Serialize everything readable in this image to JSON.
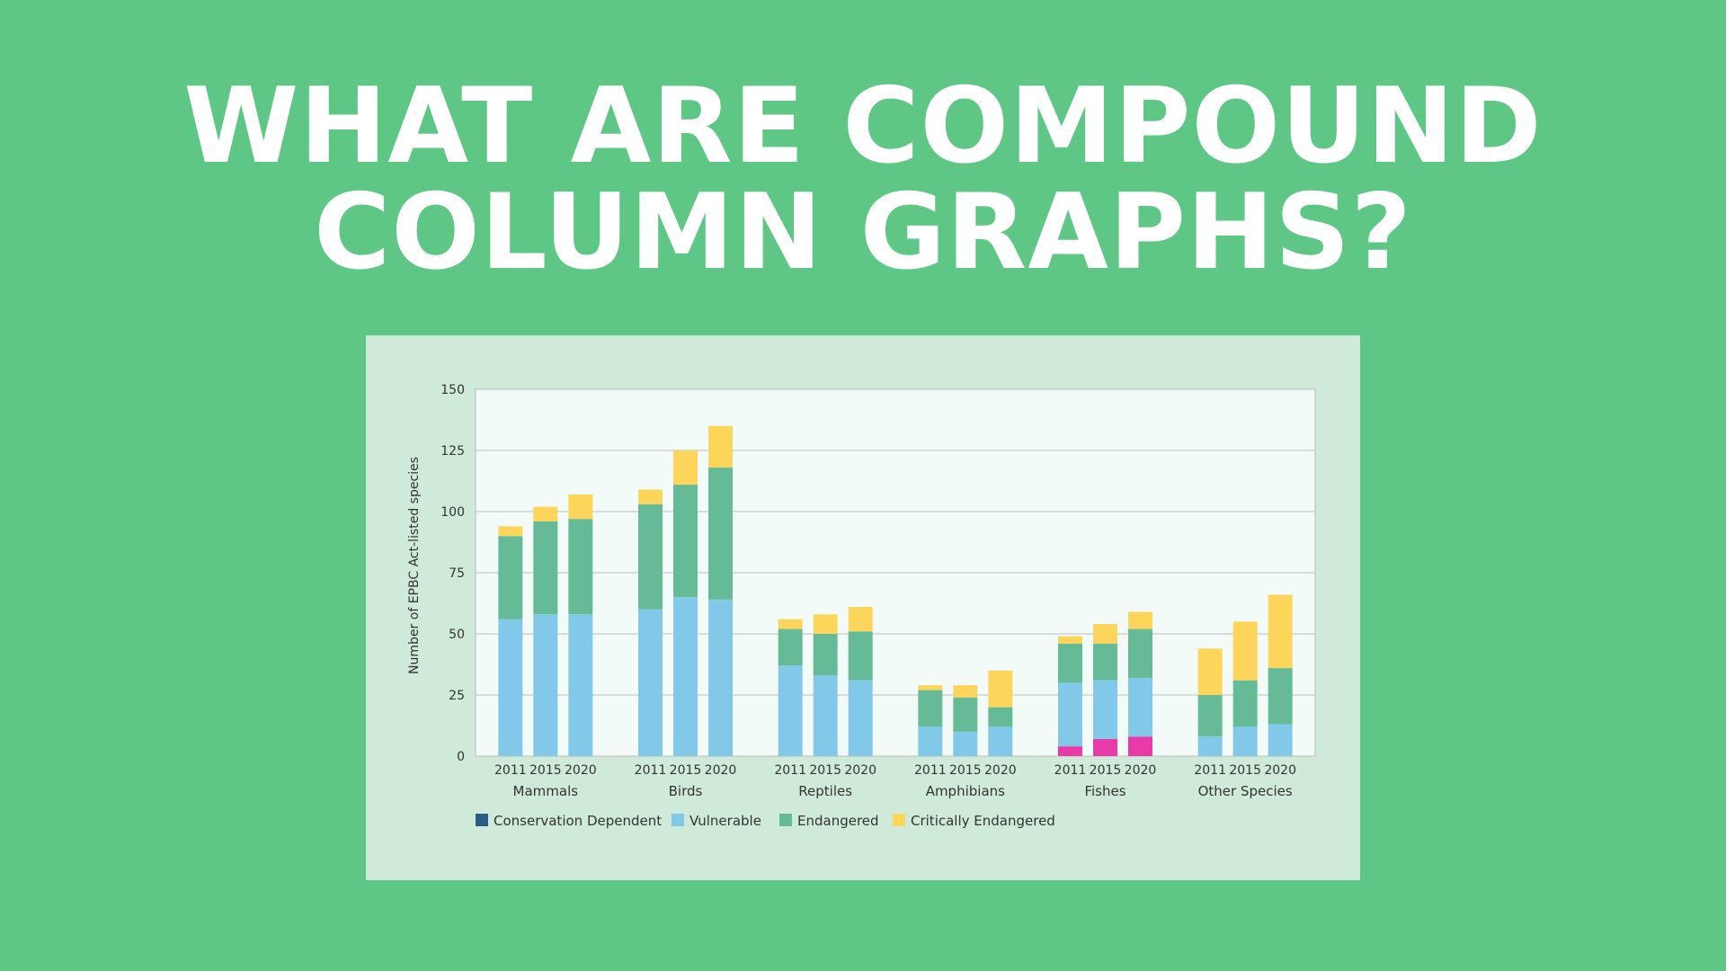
{
  "headline": {
    "line1": "WHAT ARE COMPOUND",
    "line2": "COLUMN GRAPHS?"
  },
  "colors": {
    "background": "#5ec785",
    "panel": "#d0ead9",
    "plot_bg": "#f3fbf9",
    "conservation_dependent": "#e83aa8",
    "conservation_dependent_legend": "#2a5b86",
    "vulnerable": "#82c8e8",
    "endangered": "#65bb98",
    "critically_endangered": "#fdd55b"
  },
  "chart_data": {
    "type": "bar",
    "stacked": true,
    "ylabel": "Number of EPBC Act-listed species",
    "xlabel": "",
    "ylim": [
      0,
      150
    ],
    "yticks": [
      0,
      25,
      50,
      75,
      100,
      125,
      150
    ],
    "grid": true,
    "legend_position": "bottom-left",
    "groups": [
      "Mammals",
      "Birds",
      "Reptiles",
      "Amphibians",
      "Fishes",
      "Other Species"
    ],
    "years": [
      "2011",
      "2015",
      "2020"
    ],
    "legend": [
      "Conservation Dependent",
      "Vulnerable",
      "Endangered",
      "Critically Endangered"
    ],
    "series": [
      {
        "name": "Conservation Dependent",
        "values": [
          [
            0,
            0,
            0
          ],
          [
            0,
            0,
            0
          ],
          [
            0,
            0,
            0
          ],
          [
            0,
            0,
            0
          ],
          [
            4,
            7,
            8
          ],
          [
            0,
            0,
            0
          ]
        ]
      },
      {
        "name": "Vulnerable",
        "values": [
          [
            56,
            58,
            58
          ],
          [
            60,
            65,
            64
          ],
          [
            37,
            33,
            31
          ],
          [
            12,
            10,
            12
          ],
          [
            26,
            24,
            24
          ],
          [
            8,
            12,
            13
          ]
        ]
      },
      {
        "name": "Endangered",
        "values": [
          [
            34,
            38,
            39
          ],
          [
            43,
            46,
            54
          ],
          [
            15,
            17,
            20
          ],
          [
            15,
            14,
            8
          ],
          [
            16,
            15,
            20
          ],
          [
            17,
            19,
            23
          ]
        ]
      },
      {
        "name": "Critically Endangered",
        "values": [
          [
            4,
            6,
            10
          ],
          [
            6,
            14,
            17
          ],
          [
            4,
            8,
            10
          ],
          [
            2,
            5,
            15
          ],
          [
            3,
            8,
            7
          ],
          [
            19,
            24,
            30
          ]
        ]
      }
    ]
  }
}
